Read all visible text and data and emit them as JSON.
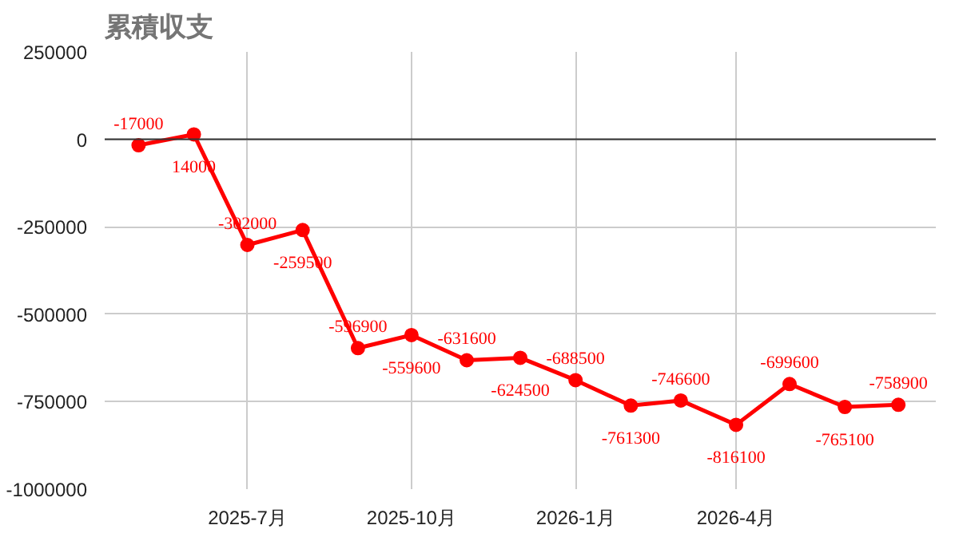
{
  "chart_data": {
    "type": "line",
    "title": "累積収支",
    "x": [
      "2025-05",
      "2025-06",
      "2025-07",
      "2025-08",
      "2025-09",
      "2025-10",
      "2025-11",
      "2025-12",
      "2026-01",
      "2026-02",
      "2026-03",
      "2026-04",
      "2026-05",
      "2026-06",
      "2026-07"
    ],
    "series": [
      {
        "color": "#ff0000",
        "values": [
          -17000,
          14000,
          -302000,
          -259500,
          -596900,
          -559600,
          -631600,
          -624500,
          -688500,
          -761300,
          -746600,
          -816100,
          -699600,
          -765100,
          -758900
        ]
      }
    ],
    "xlim": [
      "2025-04-12",
      "2026-07-22"
    ],
    "xticks": [
      {
        "value": "2025-07",
        "label": "2025-7月"
      },
      {
        "value": "2025-10",
        "label": "2025-10月"
      },
      {
        "value": "2026-01",
        "label": "2026-1月"
      },
      {
        "value": "2026-04",
        "label": "2026-4月"
      }
    ],
    "ylim": [
      -1000000,
      250000
    ],
    "yticks": [
      -1000000,
      -750000,
      -500000,
      -250000,
      0,
      250000
    ],
    "ref_lines": [
      {
        "axis": "y",
        "value": 0,
        "color": "#333333"
      }
    ],
    "grid": true,
    "marker": "circle",
    "line_style": "solid",
    "data_labels": true
  }
}
